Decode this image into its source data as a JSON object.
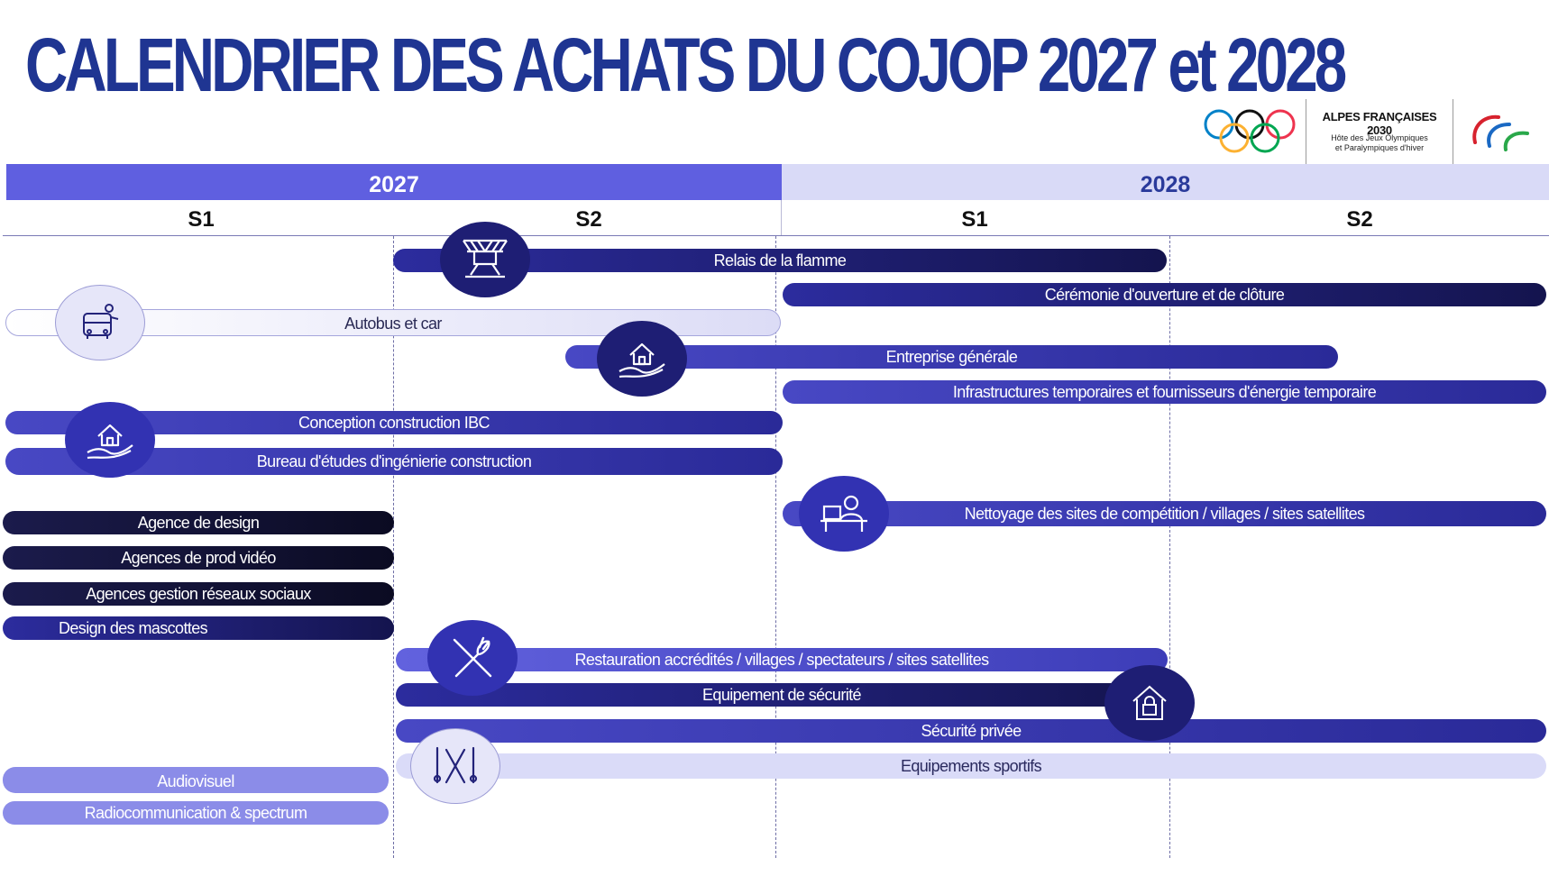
{
  "title": "CALENDRIER DES ACHATS DU COJOP 2027 et 2028",
  "logos": {
    "olympic_rings_icon": "olympic-rings",
    "brand_name": "ALPES FRANÇAISES 2030",
    "brand_subtitle": "Hôte des Jeux Olympiques\net Paralympiques d'hiver",
    "paralympic_icon": "agitos"
  },
  "years": [
    "2027",
    "2028"
  ],
  "semesters": [
    "S1",
    "S2",
    "S1",
    "S2"
  ],
  "colors": {
    "title": "#1f3592",
    "year_2027_band": "#5f5fe0",
    "year_2028_band": "#d9daf7",
    "bar_dark": "#0b0b22",
    "bar_navy": "#1c1c6a",
    "bar_royal": "#2a2a98",
    "bar_bright": "#6262de",
    "bar_periwinkle": "#8b8ce8",
    "bar_lavender": "#dadbf8"
  },
  "bars": [
    {
      "label": "Relais de la flamme",
      "period": "2027 S2 – 2028 S1"
    },
    {
      "label": "Cérémonie d'ouverture et de clôture",
      "period": "2028 S1 – 2028 S2"
    },
    {
      "label": "Autobus et car",
      "period": "2027 S1 – 2027 S2"
    },
    {
      "label": "Entreprise générale",
      "period": "2027 S2 – 2028 S2"
    },
    {
      "label": "Infrastructures temporaires et fournisseurs d'énergie temporaire",
      "period": "2028 S1 – 2028 S2"
    },
    {
      "label": "Conception construction IBC",
      "period": "2027 S1 – 2027 S2"
    },
    {
      "label": "Bureau d'études  d'ingénierie construction",
      "period": "2027 S1 – 2027 S2"
    },
    {
      "label": "Nettoyage des sites de compétition / villages / sites satellites",
      "period": "2028 S1 – 2028 S2"
    },
    {
      "label": "Agence de design",
      "period": "2027 S1"
    },
    {
      "label": "Agences de prod vidéo",
      "period": "2027 S1"
    },
    {
      "label": "Agences gestion réseaux sociaux",
      "period": "2027 S1"
    },
    {
      "label": "Design des mascottes",
      "period": "2027 S1"
    },
    {
      "label": "Restauration accrédités / villages / spectateurs / sites satellites",
      "period": "2027 S2 – 2028 S1"
    },
    {
      "label": "Equipement de sécurité",
      "period": "2027 S2 – 2028 S1"
    },
    {
      "label": "Sécurité privée",
      "period": "2027 S2 – 2028 S2"
    },
    {
      "label": "Equipements sportifs",
      "period": "2027 S2 – 2028 S2"
    },
    {
      "label": "Audiovisuel",
      "period": "2027 S1"
    },
    {
      "label": "Radiocommunication & spectrum",
      "period": "2027 S1"
    }
  ],
  "icons": [
    "podium-icon",
    "bus-icon",
    "house-in-hand-icon",
    "house-in-hand-icon",
    "cleaning-worker-icon",
    "fork-knife-icon",
    "house-lock-icon",
    "skis-icon"
  ]
}
